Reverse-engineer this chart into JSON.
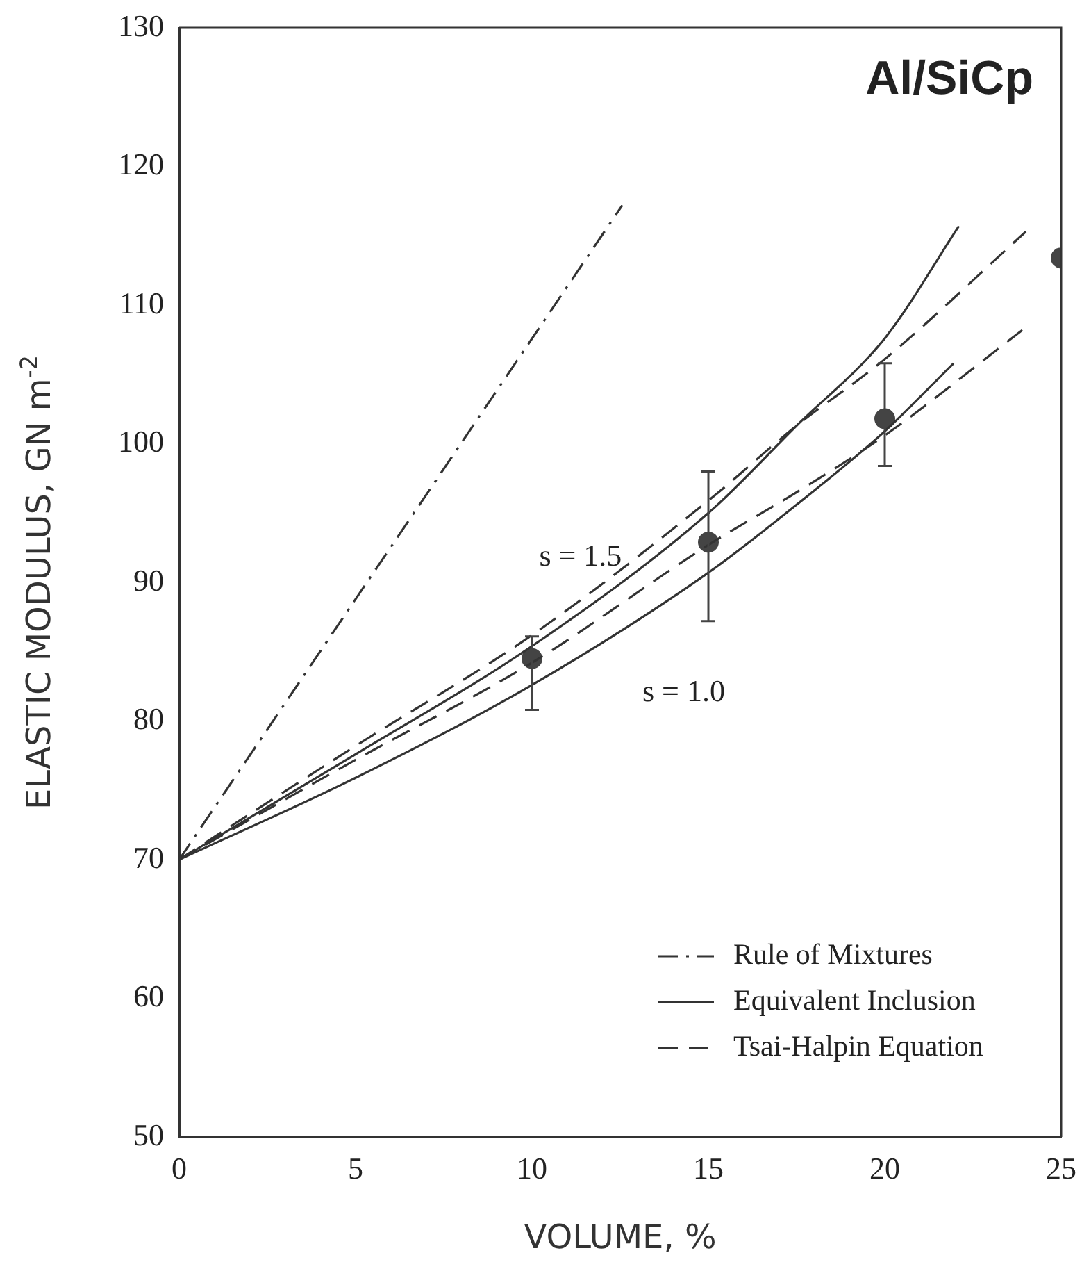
{
  "chart_data": {
    "type": "line",
    "xlabel": "VOLUME, %",
    "ylabel": "ELASTIC MODULUS, GN m$^{-2}$",
    "annotations": [
      "Al/SiCp",
      "s = 1.5",
      "s = 1.0"
    ],
    "xlim": [
      0,
      25
    ],
    "xticks": [
      0,
      5,
      10,
      15,
      20,
      25
    ],
    "ylim": [
      50,
      130
    ],
    "yticks": [
      50,
      60,
      70,
      80,
      90,
      100,
      110,
      120,
      130
    ],
    "grid": false,
    "legend": "bottom right",
    "marker": "none",
    "series": [
      {
        "name": "Rule of Mixtures",
        "type": "line",
        "line_style": "dashdot",
        "color": "#333333",
        "x": [
          0,
          12.56
        ],
        "values": [
          70,
          117.2
        ]
      },
      {
        "name": "Equivalent Inclusion",
        "type": "line",
        "line_style": "solid",
        "color": "#333333",
        "x": [
          0,
          5,
          10,
          15,
          17.5,
          20,
          22.1
        ],
        "values": [
          70,
          77.6,
          85.4,
          95.0,
          101.3,
          107.6,
          115.7
        ]
      },
      {
        "type": "line",
        "line_style": "solid",
        "color": "#333333",
        "x": [
          0,
          5,
          10,
          15,
          17.5,
          20,
          21.95
        ],
        "values": [
          70,
          75.9,
          82.6,
          90.7,
          95.6,
          100.9,
          105.8
        ]
      },
      {
        "name": "Tsai-Halpin Equation",
        "type": "line",
        "line_style": "dashed",
        "color": "#333333",
        "x": [
          0,
          5,
          10,
          15,
          17.5,
          20,
          24.0
        ],
        "values": [
          70,
          78.2,
          86.2,
          95.9,
          101.3,
          106.1,
          115.3
        ]
      },
      {
        "type": "line",
        "line_style": "dashed",
        "color": "#333333",
        "x": [
          0,
          5,
          10,
          15,
          17.5,
          20,
          23.9
        ],
        "values": [
          70,
          77.2,
          84.2,
          92.7,
          96.5,
          100.6,
          108.2
        ]
      },
      {
        "type": "scatter",
        "marker": "circle",
        "color": "#444444",
        "x": [
          10,
          15,
          20,
          25
        ],
        "values": [
          84.5,
          92.9,
          101.8,
          113.4
        ],
        "errors": [
          [
            80.8,
            86.1
          ],
          [
            87.2,
            98.0
          ],
          [
            98.4,
            105.8
          ],
          null
        ]
      }
    ]
  }
}
